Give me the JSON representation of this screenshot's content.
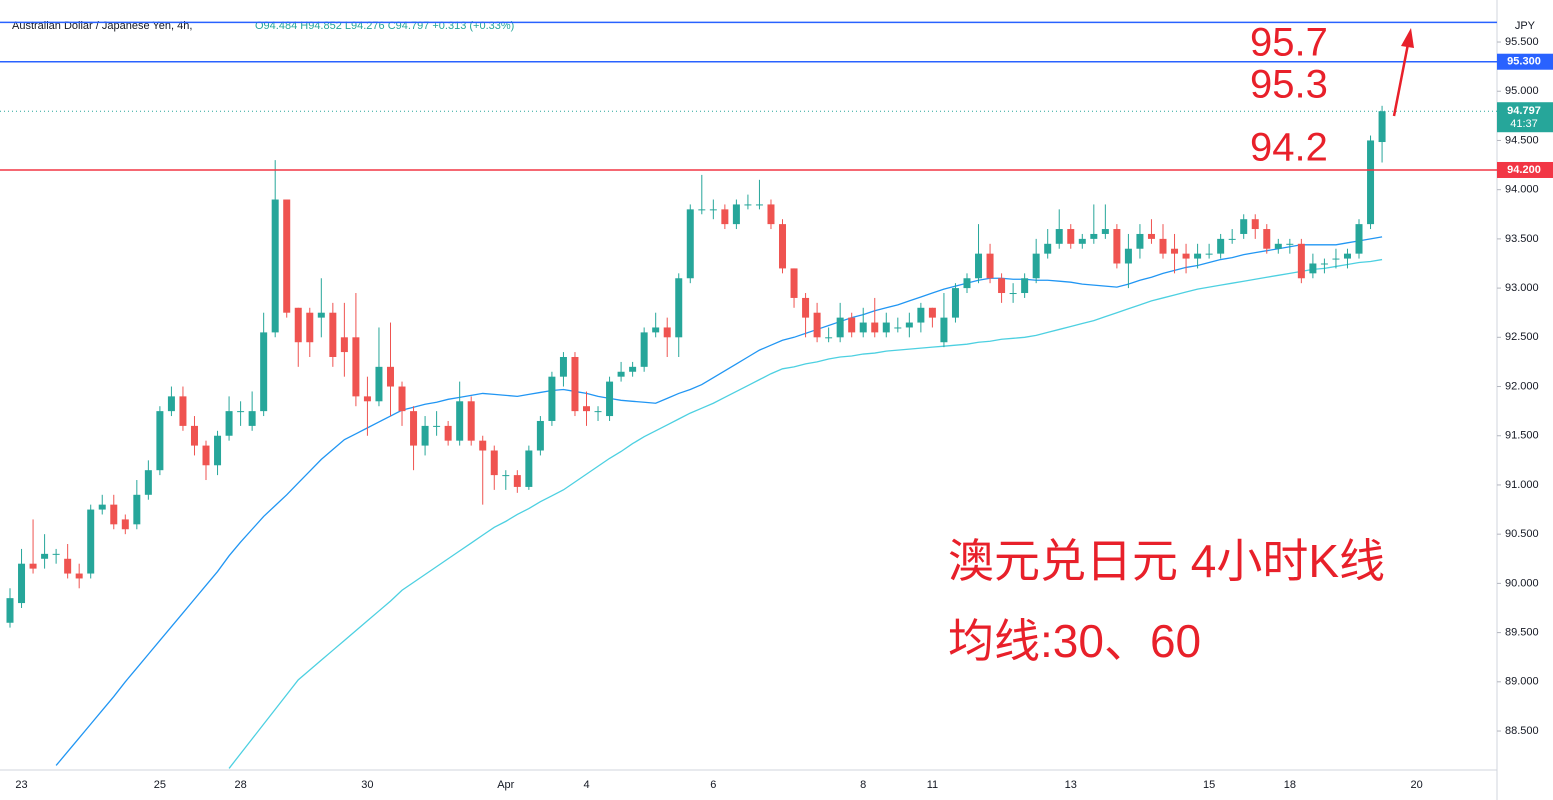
{
  "chart_data": {
    "type": "candlestick",
    "title": "Australian Dollar / Japanese Yen, 4h,",
    "ohlc_text": "O94.484 H94.852 L94.276 C94.797 +0.313 (+0.33%)",
    "currency": "JPY",
    "categories": [
      null,
      "23",
      null,
      null,
      null,
      null,
      null,
      null,
      null,
      null,
      null,
      null,
      null,
      "25",
      null,
      null,
      null,
      null,
      null,
      null,
      "28",
      null,
      null,
      null,
      null,
      null,
      null,
      null,
      null,
      null,
      null,
      "30",
      null,
      null,
      null,
      null,
      null,
      null,
      null,
      null,
      null,
      null,
      null,
      "Apr",
      null,
      null,
      null,
      null,
      null,
      null,
      "4",
      null,
      null,
      null,
      null,
      null,
      null,
      null,
      null,
      null,
      null,
      "6",
      null,
      null,
      null,
      null,
      null,
      null,
      null,
      null,
      null,
      null,
      null,
      null,
      "8",
      null,
      null,
      null,
      null,
      null,
      "11",
      null,
      null,
      null,
      null,
      null,
      null,
      null,
      null,
      null,
      null,
      null,
      "13",
      null,
      null,
      null,
      null,
      null,
      null,
      null,
      null,
      null,
      null,
      null,
      "15",
      null,
      null,
      null,
      null,
      null,
      null,
      "18",
      null,
      null,
      null,
      null,
      null,
      null,
      null,
      null,
      null,
      null,
      "20"
    ],
    "open": [
      89.6,
      89.8,
      90.2,
      90.25,
      90.3,
      90.25,
      90.1,
      90.1,
      90.75,
      90.8,
      90.65,
      90.6,
      90.9,
      91.15,
      91.75,
      91.9,
      91.6,
      91.4,
      91.2,
      91.5,
      91.75,
      91.6,
      91.75,
      92.55,
      93.9,
      92.8,
      92.75,
      92.7,
      92.75,
      92.5,
      92.5,
      91.9,
      91.85,
      92.2,
      92.0,
      91.75,
      91.4,
      91.6,
      91.6,
      91.45,
      91.85,
      91.45,
      91.35,
      91.1,
      91.1,
      90.98,
      91.35,
      91.65,
      92.1,
      92.3,
      91.8,
      91.75,
      91.7,
      92.1,
      92.15,
      92.2,
      92.55,
      92.6,
      92.5,
      93.1,
      93.8,
      93.8,
      93.8,
      93.65,
      93.85,
      93.85,
      93.85,
      93.65,
      93.2,
      92.9,
      92.75,
      92.5,
      92.5,
      92.7,
      92.55,
      92.65,
      92.55,
      92.6,
      92.6,
      92.65,
      92.8,
      92.45,
      92.7,
      93.0,
      93.1,
      93.35,
      93.1,
      92.95,
      92.95,
      93.1,
      93.35,
      93.45,
      93.6,
      93.45,
      93.5,
      93.55,
      93.6,
      93.25,
      93.4,
      93.55,
      93.5,
      93.4,
      93.35,
      93.3,
      93.35,
      93.35,
      93.5,
      93.55,
      93.7,
      93.6,
      93.4,
      93.45,
      93.45,
      93.15,
      93.25,
      93.3,
      93.3,
      93.35,
      93.65,
      94.484,
      null,
      null,
      null
    ],
    "high": [
      89.95,
      90.35,
      90.65,
      90.5,
      90.35,
      90.4,
      90.2,
      90.8,
      90.9,
      90.9,
      90.7,
      91.05,
      91.25,
      91.8,
      92.0,
      92.0,
      91.7,
      91.45,
      91.55,
      91.9,
      91.85,
      91.95,
      92.75,
      94.3,
      93.9,
      92.8,
      92.8,
      93.1,
      92.85,
      92.85,
      92.95,
      92.1,
      92.6,
      92.65,
      92.05,
      91.8,
      91.7,
      91.75,
      91.65,
      92.05,
      91.9,
      91.5,
      91.4,
      91.15,
      91.15,
      91.4,
      91.7,
      92.15,
      92.35,
      92.35,
      91.95,
      91.8,
      92.1,
      92.25,
      92.25,
      92.6,
      92.75,
      92.7,
      93.15,
      93.85,
      94.15,
      93.9,
      93.85,
      93.9,
      93.95,
      94.1,
      93.9,
      93.7,
      93.2,
      92.95,
      92.85,
      92.6,
      92.85,
      92.75,
      92.8,
      92.9,
      92.75,
      92.7,
      92.75,
      92.85,
      92.8,
      92.95,
      93.05,
      93.15,
      93.65,
      93.45,
      93.15,
      93.05,
      93.15,
      93.5,
      93.6,
      93.8,
      93.65,
      93.55,
      93.85,
      93.85,
      93.65,
      93.55,
      93.65,
      93.7,
      93.65,
      93.55,
      93.45,
      93.45,
      93.45,
      93.55,
      93.6,
      93.75,
      93.75,
      93.65,
      93.5,
      93.5,
      93.5,
      93.35,
      93.3,
      93.4,
      93.4,
      93.7,
      94.55,
      94.852,
      null,
      null,
      null
    ],
    "low": [
      89.55,
      89.75,
      90.1,
      90.15,
      90.2,
      90.05,
      89.95,
      90.05,
      90.7,
      90.55,
      90.5,
      90.55,
      90.85,
      91.1,
      91.7,
      91.55,
      91.3,
      91.05,
      91.1,
      91.45,
      91.6,
      91.55,
      91.7,
      92.5,
      92.7,
      92.2,
      92.3,
      92.5,
      92.2,
      92.1,
      91.8,
      91.5,
      91.8,
      91.7,
      91.6,
      91.15,
      91.3,
      91.5,
      91.4,
      91.4,
      91.4,
      90.8,
      90.95,
      90.95,
      90.92,
      90.95,
      91.3,
      91.6,
      92.0,
      91.7,
      91.6,
      91.65,
      91.65,
      92.05,
      92.1,
      92.15,
      92.5,
      92.3,
      92.3,
      93.05,
      93.75,
      93.7,
      93.6,
      93.6,
      93.8,
      93.8,
      93.6,
      93.15,
      92.8,
      92.5,
      92.45,
      92.45,
      92.45,
      92.5,
      92.5,
      92.5,
      92.5,
      92.55,
      92.5,
      92.55,
      92.6,
      92.4,
      92.65,
      92.95,
      93.05,
      93.05,
      92.85,
      92.85,
      92.9,
      93.05,
      93.3,
      93.4,
      93.4,
      93.4,
      93.45,
      93.5,
      93.2,
      93.0,
      93.3,
      93.45,
      93.3,
      93.15,
      93.15,
      93.2,
      93.3,
      93.3,
      93.45,
      93.5,
      93.5,
      93.35,
      93.35,
      93.35,
      93.05,
      93.1,
      93.15,
      93.2,
      93.2,
      93.3,
      93.6,
      94.276,
      null,
      null,
      null
    ],
    "close": [
      89.85,
      90.2,
      90.15,
      90.3,
      90.3,
      90.1,
      90.05,
      90.75,
      90.8,
      90.6,
      90.55,
      90.9,
      91.15,
      91.75,
      91.9,
      91.6,
      91.4,
      91.2,
      91.5,
      91.75,
      91.75,
      91.75,
      92.55,
      93.9,
      92.75,
      92.45,
      92.45,
      92.75,
      92.3,
      92.35,
      91.9,
      91.85,
      92.2,
      92.0,
      91.75,
      91.4,
      91.6,
      91.6,
      91.45,
      91.85,
      91.45,
      91.35,
      91.1,
      91.1,
      90.98,
      91.35,
      91.65,
      92.1,
      92.3,
      91.75,
      91.75,
      91.75,
      92.05,
      92.15,
      92.2,
      92.55,
      92.6,
      92.5,
      93.1,
      93.8,
      93.8,
      93.8,
      93.65,
      93.85,
      93.85,
      93.85,
      93.65,
      93.2,
      92.9,
      92.7,
      92.5,
      92.5,
      92.7,
      92.55,
      92.65,
      92.55,
      92.65,
      92.6,
      92.65,
      92.8,
      92.7,
      92.7,
      93.0,
      93.1,
      93.35,
      93.1,
      92.95,
      92.95,
      93.1,
      93.35,
      93.45,
      93.6,
      93.45,
      93.5,
      93.55,
      93.6,
      93.25,
      93.4,
      93.55,
      93.5,
      93.35,
      93.35,
      93.3,
      93.35,
      93.35,
      93.5,
      93.5,
      93.7,
      93.6,
      93.4,
      93.45,
      93.45,
      93.1,
      93.25,
      93.25,
      93.3,
      93.35,
      93.65,
      94.5,
      94.797,
      null,
      null,
      null
    ],
    "up_color": "#26a69a",
    "down_color": "#ef5350",
    "series": [
      {
        "color": "#2196f3",
        "values": [
          null,
          null,
          null,
          null,
          88.15,
          88.29,
          88.43,
          88.57,
          88.71,
          88.85,
          89.0,
          89.14,
          89.28,
          89.42,
          89.56,
          89.7,
          89.84,
          89.98,
          90.12,
          90.28,
          90.42,
          90.55,
          90.68,
          90.79,
          90.9,
          91.02,
          91.14,
          91.26,
          91.36,
          91.46,
          91.52,
          91.58,
          91.64,
          91.7,
          91.76,
          91.79,
          91.82,
          91.84,
          91.87,
          91.89,
          91.91,
          91.93,
          91.92,
          91.91,
          91.9,
          91.92,
          91.94,
          91.96,
          91.97,
          91.95,
          91.93,
          91.9,
          91.88,
          91.86,
          91.85,
          91.84,
          91.83,
          91.88,
          91.93,
          91.97,
          92.02,
          92.09,
          92.16,
          92.23,
          92.3,
          92.37,
          92.42,
          92.47,
          92.5,
          92.54,
          92.58,
          92.62,
          92.66,
          92.7,
          92.73,
          92.77,
          92.8,
          92.83,
          92.87,
          92.91,
          92.95,
          92.99,
          93.02,
          93.05,
          93.08,
          93.1,
          93.1,
          93.09,
          93.09,
          93.08,
          93.08,
          93.07,
          93.06,
          93.04,
          93.03,
          93.02,
          93.01,
          93.04,
          93.08,
          93.11,
          93.15,
          93.18,
          93.21,
          93.23,
          93.26,
          93.29,
          93.31,
          93.34,
          93.36,
          93.38,
          93.4,
          93.42,
          93.44,
          93.44,
          93.44,
          93.44,
          93.46,
          93.48,
          93.5,
          93.52,
          null,
          null,
          null
        ]
      },
      {
        "color": "#4dd0e1",
        "values": [
          null,
          null,
          null,
          null,
          null,
          null,
          null,
          null,
          null,
          null,
          null,
          null,
          null,
          null,
          null,
          null,
          null,
          null,
          null,
          88.12,
          88.27,
          88.42,
          88.57,
          88.72,
          88.87,
          89.02,
          89.12,
          89.22,
          89.32,
          89.42,
          89.52,
          89.62,
          89.72,
          89.82,
          89.93,
          90.01,
          90.09,
          90.17,
          90.25,
          90.33,
          90.41,
          90.49,
          90.57,
          90.63,
          90.7,
          90.76,
          90.83,
          90.89,
          90.95,
          91.03,
          91.11,
          91.19,
          91.27,
          91.34,
          91.42,
          91.49,
          91.55,
          91.61,
          91.67,
          91.73,
          91.78,
          91.83,
          91.89,
          91.95,
          92.01,
          92.07,
          92.13,
          92.18,
          92.2,
          92.23,
          92.25,
          92.28,
          92.3,
          92.31,
          92.33,
          92.34,
          92.36,
          92.37,
          92.38,
          92.39,
          92.4,
          92.41,
          92.42,
          92.43,
          92.45,
          92.46,
          92.48,
          92.49,
          92.5,
          92.52,
          92.55,
          92.58,
          92.61,
          92.64,
          92.67,
          92.71,
          92.75,
          92.79,
          92.83,
          92.87,
          92.9,
          92.93,
          92.96,
          92.99,
          93.01,
          93.03,
          93.05,
          93.07,
          93.09,
          93.11,
          93.13,
          93.15,
          93.17,
          93.19,
          93.2,
          93.22,
          93.24,
          93.26,
          93.27,
          93.29,
          null,
          null,
          null
        ]
      }
    ],
    "ylim": [
      88.104,
      95.927
    ],
    "yticks": [
      {
        "value": 88.5,
        "label": "88.500"
      },
      {
        "value": 89,
        "label": "89.000"
      },
      {
        "value": 89.5,
        "label": "89.500"
      },
      {
        "value": 90,
        "label": "90.000"
      },
      {
        "value": 90.5,
        "label": "90.500"
      },
      {
        "value": 91,
        "label": "91.000"
      },
      {
        "value": 91.5,
        "label": "91.500"
      },
      {
        "value": 92,
        "label": "92.000"
      },
      {
        "value": 92.5,
        "label": "92.500"
      },
      {
        "value": 93,
        "label": "93.000"
      },
      {
        "value": 93.5,
        "label": "93.500"
      },
      {
        "value": 94,
        "label": "94.000"
      },
      {
        "value": 94.5,
        "label": "94.500"
      },
      {
        "value": 95,
        "label": "95.000"
      },
      {
        "value": 95.5,
        "label": "95.500"
      }
    ],
    "hlines": [
      {
        "value": 95.7,
        "color": "#2962ff"
      },
      {
        "value": 95.3,
        "label": "95.300",
        "color": "#2962ff"
      },
      {
        "value": 94.2,
        "label": "94.200",
        "color": "#f23645"
      }
    ],
    "last_price": {
      "value": 94.797,
      "label": "94.797",
      "countdown": "41:37",
      "color": "#26a69a"
    },
    "annotations": [
      "95.7",
      "95.3",
      "94.2",
      "澳元兑日元 4小时K线",
      "均线:30、60"
    ],
    "annotation_color": "#e8202a"
  }
}
